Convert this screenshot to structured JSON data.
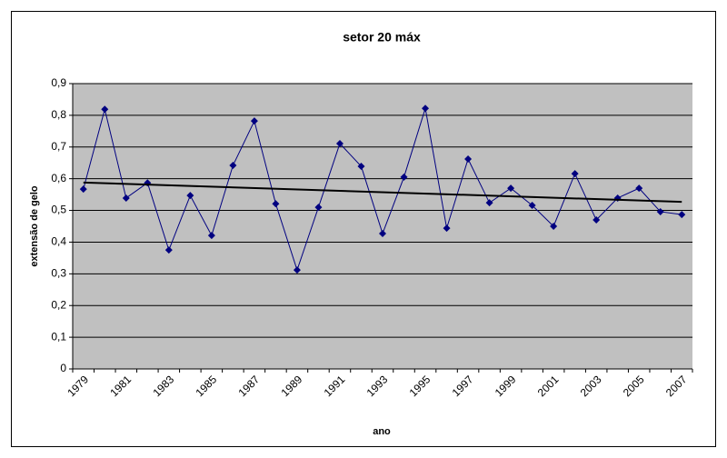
{
  "chart_data": {
    "type": "line",
    "title": "setor 20 máx",
    "xlabel": "ano",
    "ylabel": "extensão de gelo",
    "categories": [
      "1979",
      null,
      "1981",
      null,
      "1983",
      null,
      "1985",
      null,
      "1987",
      null,
      "1989",
      null,
      "1991",
      null,
      "1993",
      null,
      "1995",
      null,
      "1997",
      null,
      "1999",
      null,
      "2001",
      null,
      "2003",
      null,
      "2005",
      null,
      "2007"
    ],
    "series": [
      {
        "name": "setor 20 máx",
        "color": "#000080",
        "values": [
          0.567,
          0.819,
          0.539,
          0.587,
          0.375,
          0.547,
          0.421,
          0.642,
          0.782,
          0.521,
          0.312,
          0.51,
          0.711,
          0.639,
          0.427,
          0.605,
          0.822,
          0.444,
          0.662,
          0.524,
          0.57,
          0.516,
          0.45,
          0.616,
          0.47,
          0.539,
          0.57,
          0.496,
          0.487
        ]
      }
    ],
    "trend": {
      "start": 0.588,
      "end": 0.527,
      "color": "#000000"
    },
    "ylim": [
      0,
      0.9
    ],
    "yticks": [
      0,
      {
        "value": 0.1,
        "label": "0,1"
      },
      {
        "value": 0.2,
        "label": "0,2"
      },
      {
        "value": 0.3,
        "label": "0,3"
      },
      {
        "value": 0.4,
        "label": "0,4"
      },
      {
        "value": 0.5,
        "label": "0,5"
      },
      {
        "value": 0.6,
        "label": "0,6"
      },
      {
        "value": 0.7,
        "label": "0,7"
      },
      {
        "value": 0.8,
        "label": "0,8"
      },
      {
        "value": 0.9,
        "label": "0,9"
      }
    ],
    "grid": true,
    "plot_background": "#c0c0c0"
  }
}
